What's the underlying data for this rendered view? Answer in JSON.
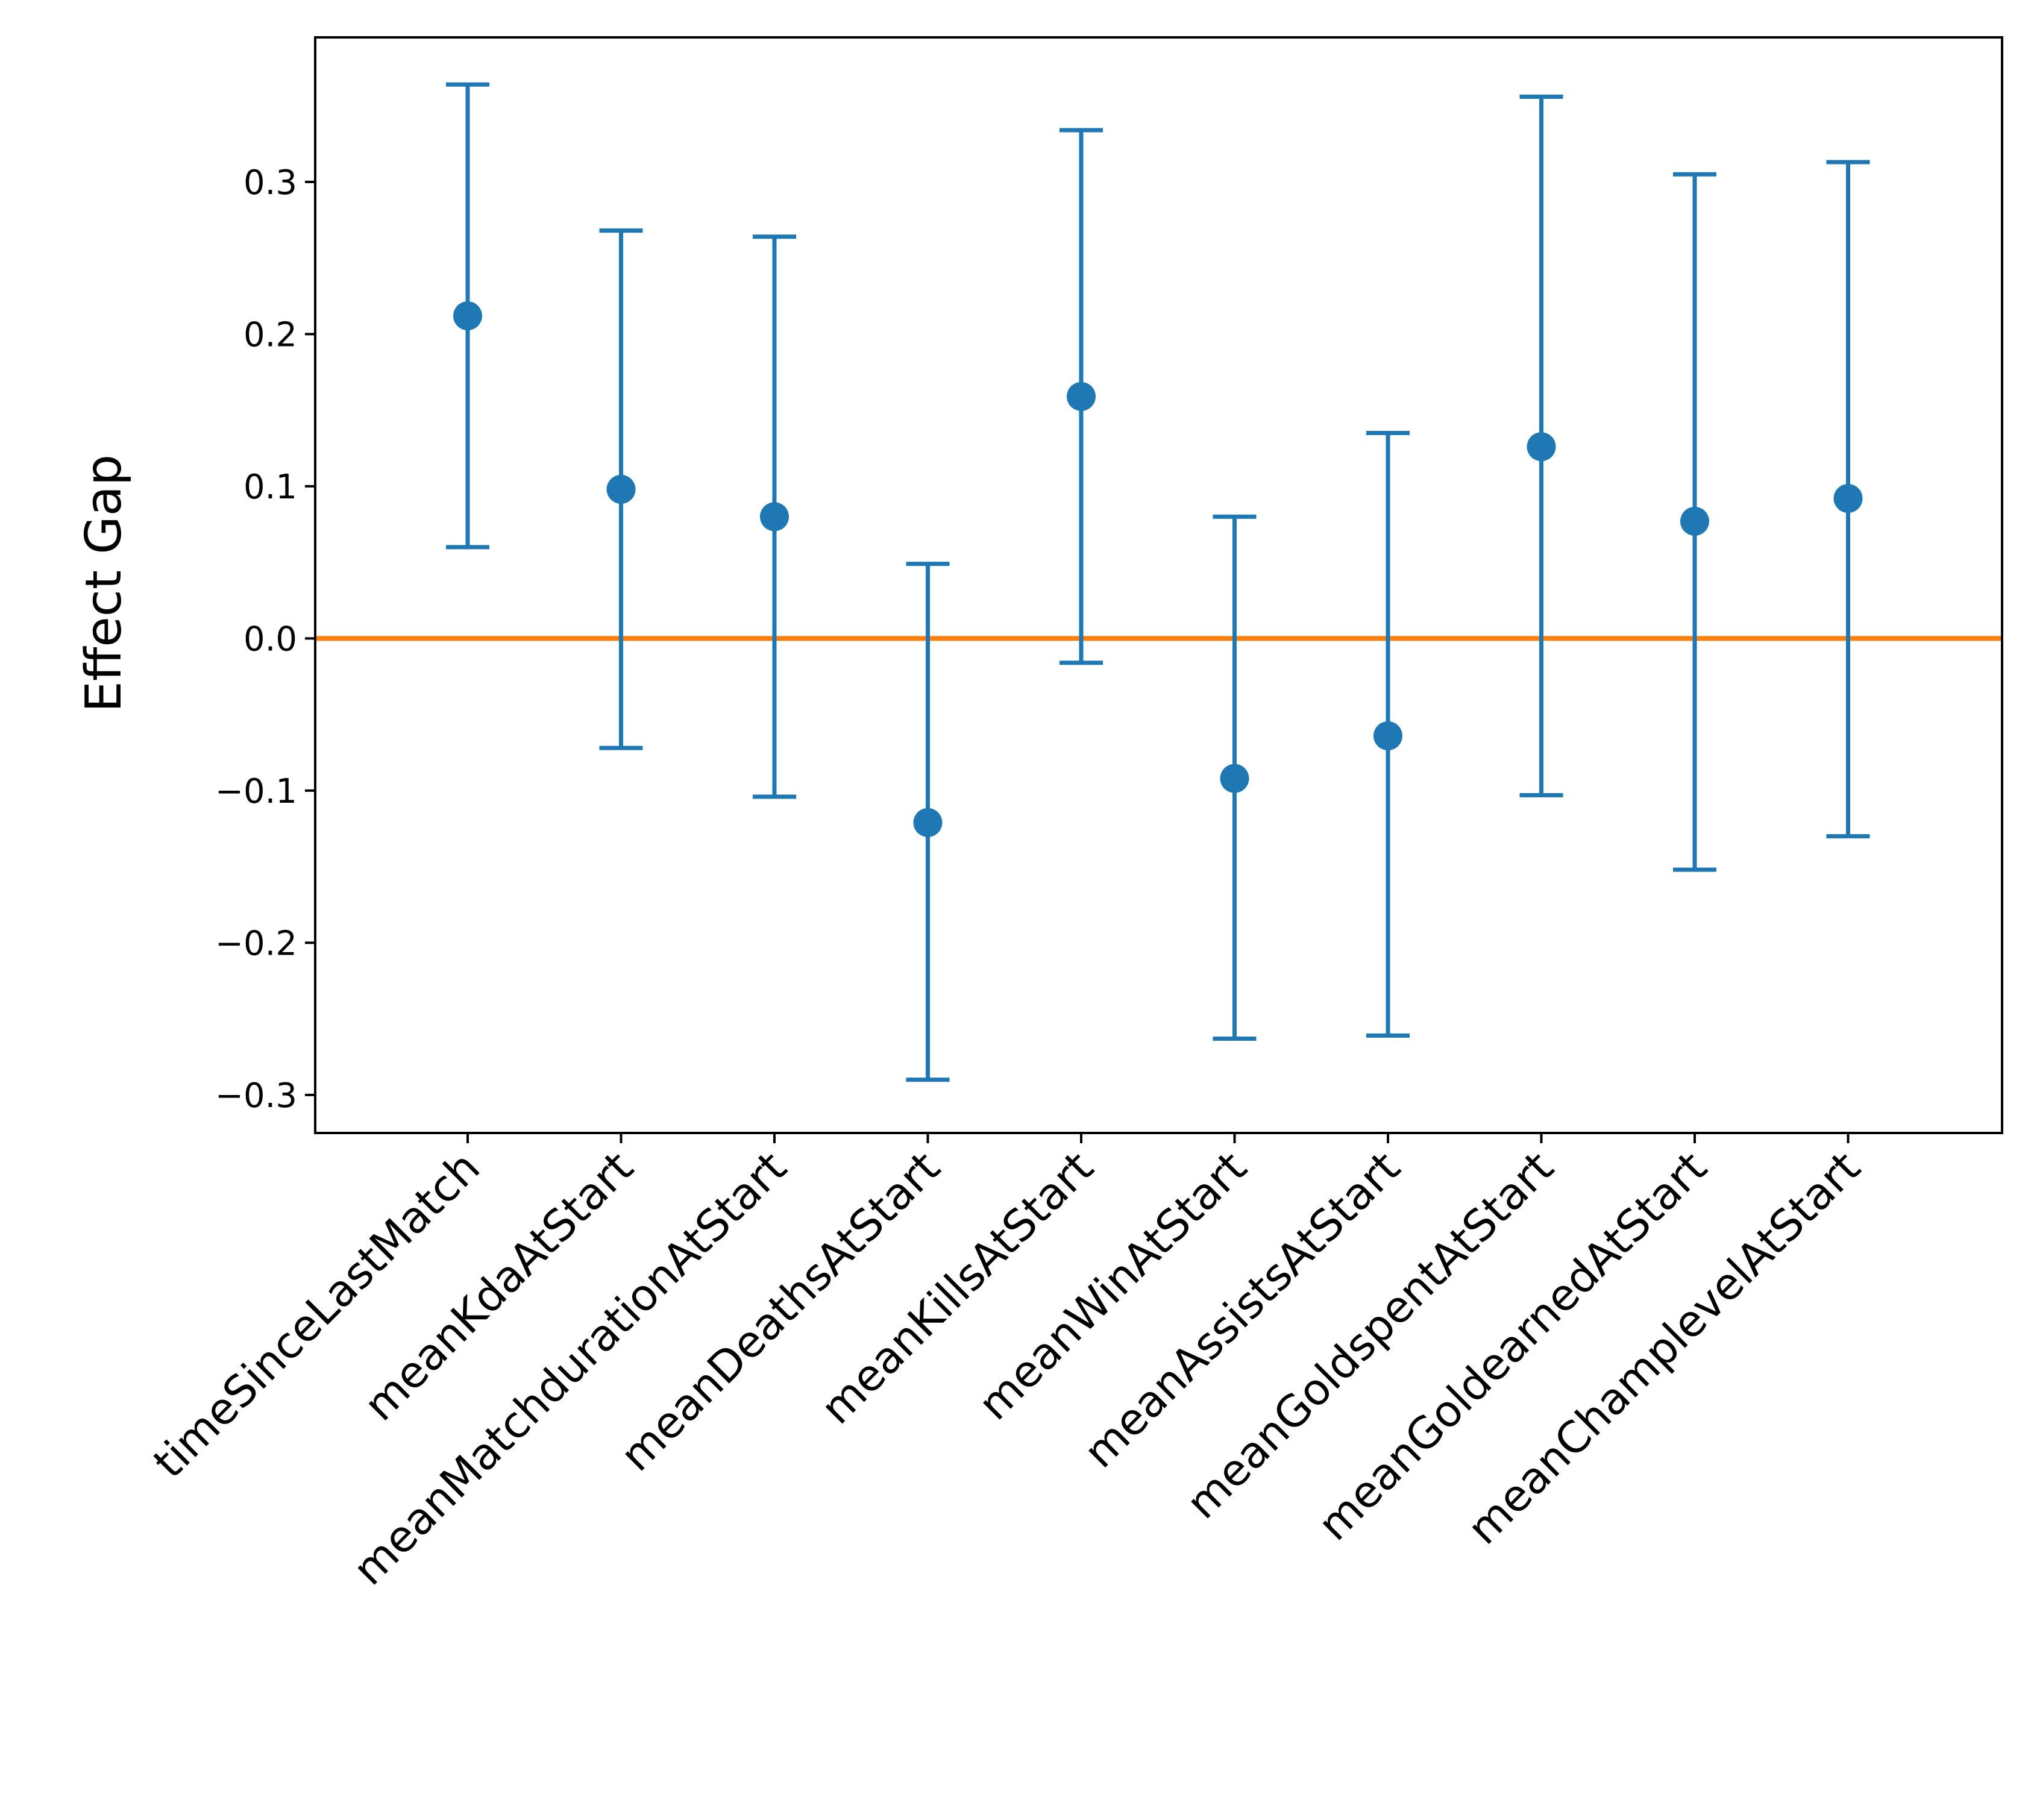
{
  "chart_data": {
    "type": "errorbar",
    "title": "",
    "xlabel": "",
    "ylabel": "Effect Gap",
    "ylim": [
      -0.325,
      0.395
    ],
    "yticks": [
      -0.3,
      -0.2,
      -0.1,
      0.0,
      0.1,
      0.2,
      0.3
    ],
    "ytick_labels": [
      "−0.3",
      "−0.2",
      "−0.1",
      "0.0",
      "0.1",
      "0.2",
      "0.3"
    ],
    "grid": false,
    "reference_line": {
      "y": 0.0,
      "color": "#ff7f0e"
    },
    "series": [
      {
        "color": "#1f77b4",
        "categories": [
          "timeSinceLastMatch",
          "meanKdaAtStart",
          "meanMatchdurationAtStart",
          "meanDeathsAtStart",
          "meanKillsAtStart",
          "meanWinAtStart",
          "meanAssistsAtStart",
          "meanGoldspentAtStart",
          "meanGoldearnedAtStart",
          "meanChamplevelAtStart"
        ],
        "values": [
          0.212,
          0.098,
          0.08,
          -0.121,
          0.159,
          -0.092,
          -0.064,
          0.126,
          0.077,
          0.092
        ],
        "lower": [
          0.06,
          -0.072,
          -0.104,
          -0.29,
          -0.016,
          -0.263,
          -0.261,
          -0.103,
          -0.152,
          -0.13
        ],
        "upper": [
          0.364,
          0.268,
          0.264,
          0.049,
          0.334,
          0.08,
          0.135,
          0.356,
          0.305,
          0.313
        ]
      }
    ]
  }
}
